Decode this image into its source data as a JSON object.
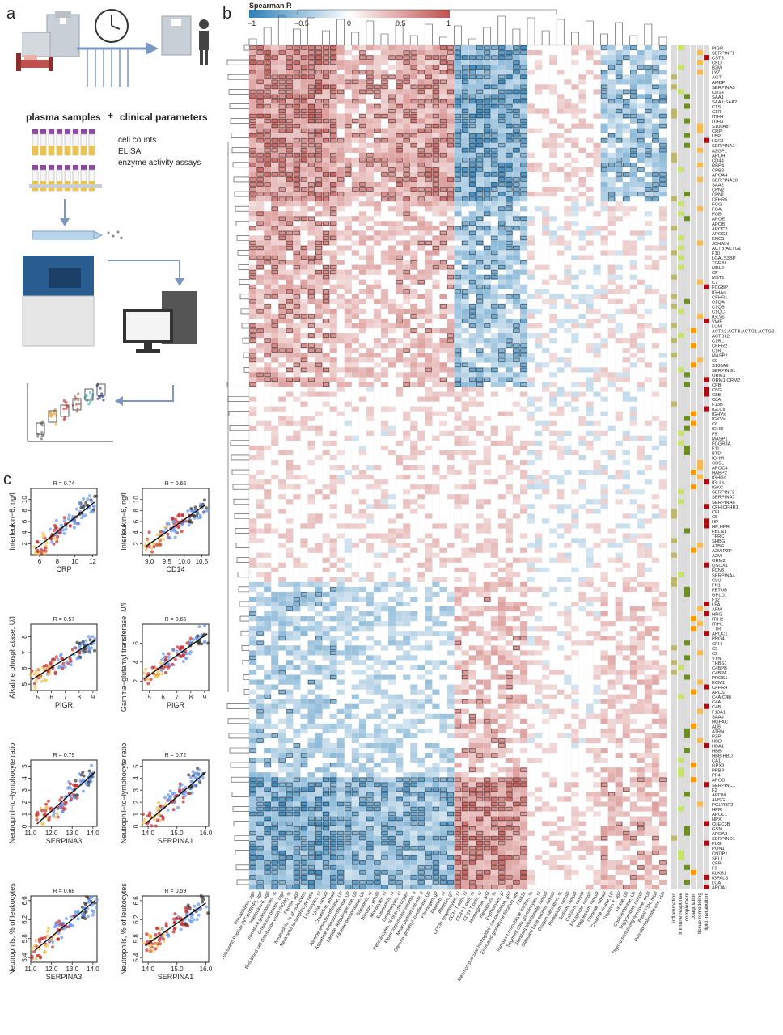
{
  "figure": {
    "panel_a": "a",
    "panel_b": "b",
    "panel_c": "c"
  },
  "workflow": {
    "plasma_label": "plasma samples",
    "plus": "+",
    "clinical_label": "clinical parameters",
    "methods": [
      "cell counts",
      "ELISA",
      "enzyme activity assays"
    ]
  },
  "colorbar": {
    "title": "Spearman R",
    "ticks": [
      "−1",
      "−0.5",
      "0",
      "0.5",
      "1"
    ],
    "low_color": "#2c7fb8",
    "high_color": "#c0504d"
  },
  "heatmap": {
    "proteins": [
      "PIGR",
      "SERPINF1",
      "CST3",
      "CFD",
      "B2M",
      "LYZ",
      "AGT",
      "AMBP",
      "SERPINA3",
      "CD14",
      "SAA1",
      "SAA1;SAA2",
      "C1S",
      "C1R",
      "ITIH4",
      "ITIH3",
      "S100A8",
      "CRP",
      "LBP",
      "LRG1",
      "SERPINA1",
      "AZGP1",
      "APOH",
      "CD44",
      "RBP4",
      "CPB2",
      "APOA4",
      "SERPINA10",
      "SAA2",
      "CPN2",
      "CPN1",
      "CFHR5",
      "FGG",
      "FGA",
      "FGB",
      "APOE",
      "APOB",
      "APOC2",
      "APOC3",
      "KNG1",
      "JCHAIN",
      "ACTB;ACTG1",
      "F10",
      "LGALS3BP",
      "TGFBI",
      "MBL2",
      "CP",
      "MST1",
      "C7",
      "FCGBP",
      "IGHAs",
      "CFHR1",
      "C1QA",
      "C1QB",
      "C1QC",
      "IGLVs",
      "VWF",
      "LUM",
      "ACTA2;ACTB;ACTG1;ACTG2",
      "ACTBL2",
      "C1RL",
      "CFHR2",
      "C1RL",
      "MASP2",
      "C9",
      "S100A9",
      "SERPING1",
      "ORM1",
      "ORM1;ORM2",
      "CFB",
      "C8G",
      "C8B",
      "C8A",
      "F13B",
      "IGLCs",
      "IGHVs",
      "IGKVs",
      "C6",
      "IGHD",
      "F5",
      "MASP1",
      "FCGR3A",
      "F11",
      "BTD",
      "IGHM",
      "CD5L",
      "APOC4",
      "HABP2",
      "IGHGs",
      "IGLLs",
      "IGKC",
      "SERPINF2",
      "SERPINA7",
      "SERPINA6",
      "CFH;CFHR1",
      "CFI",
      "C5",
      "HP",
      "HP;HPR",
      "FBLN1",
      "TFRC",
      "SHBG",
      "A1BG",
      "A2M;PZP",
      "A2M",
      "ORM2",
      "QSOX1",
      "FCN3",
      "SERPINA4",
      "CLU",
      "FN1",
      "FETUB",
      "GPLD1",
      "F12",
      "LPA",
      "AFM",
      "HRG",
      "ITIH2",
      "ITIH1",
      "TTR",
      "APOC1",
      "PRG4",
      "CFH",
      "C3",
      "C2",
      "VTN",
      "THBS1",
      "C4BPB",
      "C4BPA",
      "PROS1",
      "ECM1",
      "CFHR4",
      "APCS",
      "C4A;C4B",
      "C4A",
      "C4B",
      "F13A1",
      "SAA4",
      "HGFAC",
      "ALB",
      "ATRN",
      "PZP",
      "HBD",
      "HBA1",
      "HBB",
      "HBB;HBD",
      "CA1",
      "GPX3",
      "PPBP",
      "PF4",
      "APOD",
      "SERPINC1",
      "F2",
      "APOM",
      "AHSG",
      "PGLYRP2",
      "HPR",
      "APOL1",
      "HPX",
      "CLEC3B",
      "GSN",
      "APOA2",
      "SERPIND1",
      "PLG",
      "PON1",
      "CNDP1",
      "SELL",
      "CFP",
      "F9",
      "KLKB1",
      "IGFALS",
      "LCAT",
      "APOA1"
    ],
    "parameters": [
      "Procalcitonin, ng/l",
      "N-terminal pro b-type Natriuretic Peptide (NT-proBNP), ng/l",
      "Interleukin-6, ng/l",
      "Immature granulocytes, %",
      "C-reactive protein, mg/l",
      "Red blood cell distribution width (RDW), %",
      "Ferritin, µg/l",
      "Neutrophils, % of leukocytes",
      "Neutrophil-to-lymphocyte ratio",
      "Leukocytes, nl",
      "Urea, mmol/l",
      "Creatinine, µmol/l",
      "Alanine aminotransferase, U/l",
      "Aspartate aminotransferase, U/l",
      "Lactate dehydrogenase, U/l",
      "Alkaline phosphatase, U/l",
      "Basophils, nl",
      "Bilirubin, µmol/l",
      "Monocytes, nl",
      "Eosinophils, nl",
      "Lymphocytes, nl",
      "Reticulocytes, % of erythrocytes",
      "Mean corpuscular volume, fl",
      "Mean platelet volume, fl",
      "Gamma-glutamyl transferase, U/l",
      "Fibrinogen, g/l",
      "Platelets, nl",
      "Albumin, g/l",
      "CD19+ lymphocytes, nl",
      "CD3+ T cells, nl",
      "CD4+ T cells, nl",
      "CD8+ T cells, nl",
      "Hemoglobin, g/dl",
      "Hematocrit, %",
      "Erythrocytes, pl",
      "Mean corpuscular hemoglobin concentration, g/dl",
      "Estimated glomerular filtration rate",
      "HbA1c",
      "Immature reticulocyte fraction, %",
      "Segment core granulocytes, nl",
      "Standard bicarbonate, mmol/l",
      "Standard base excess, mmol/l",
      "Oxygen saturation, %",
      "Potassium, mmol/l",
      "Sodium, mmol/l",
      "Calcium, mmol/l",
      "Phosphate, mmol/l",
      "Magnesium, mmol/l",
      "Chloride, mmol/l",
      "Creatine kinase, U/l",
      "Troponin T, ng/l",
      "Lipase, U/l",
      "Cholinesterase, U/l",
      "Triglycerides, mmol/l",
      "Thyroid-stimulating hormone, mU/l",
      "Basal TSH, mU/l",
      "Pseudocholinesterase, kU/l"
    ],
    "annotation_columns": [
      "inflammation",
      "immune response",
      "complement",
      "coagulation",
      "tissue remodeling",
      "lipid metabolism"
    ],
    "annotation_colors": [
      "#bdb76b",
      "#c6e36b",
      "#6b8e23",
      "#ff9900",
      "#ffb84d",
      "#a50f15"
    ]
  },
  "scatter_panels": {
    "colors": [
      "#6495ed",
      "#c62828",
      "#f2c14e",
      "#333333"
    ],
    "plots": [
      {
        "r": "R = 0.74",
        "ylabel": "Interleukin−6, ng/l",
        "xlabel": "CRP",
        "xticks": [
          "6",
          "8",
          "10",
          "12"
        ],
        "yticks": [
          "2",
          "4",
          "6",
          "8",
          "10"
        ],
        "xr": [
          5,
          12.5
        ],
        "yr": [
          0,
          12
        ],
        "line": [
          [
            5.5,
            1
          ],
          [
            12.2,
            9.5
          ]
        ]
      },
      {
        "r": "R = 0.66",
        "ylabel": "Interleukin−6, ng/l",
        "xlabel": "CD14",
        "xticks": [
          "9.0",
          "9.5",
          "10.0",
          "10.5"
        ],
        "yticks": [
          "2",
          "4",
          "6",
          "8",
          "10"
        ],
        "xr": [
          8.8,
          10.7
        ],
        "yr": [
          0,
          12
        ],
        "line": [
          [
            8.9,
            1.5
          ],
          [
            10.6,
            9
          ]
        ]
      },
      {
        "r": "R = 0.57",
        "ylabel": "Alkaline phosphatase, U/l",
        "xlabel": "PIGR",
        "xticks": [
          "5",
          "6",
          "7",
          "8",
          "9"
        ],
        "yticks": [
          "5",
          "6",
          "7",
          "8"
        ],
        "xr": [
          4.5,
          9.3
        ],
        "yr": [
          4.6,
          8.8
        ],
        "line": [
          [
            4.6,
            5.3
          ],
          [
            9.2,
            7.8
          ]
        ]
      },
      {
        "r": "R = 0.65",
        "ylabel": "Gamma−glutamyl transferase, U/l",
        "xlabel": "PIGR",
        "xticks": [
          "5",
          "6",
          "7",
          "8",
          "9"
        ],
        "yticks": [
          "2",
          "4",
          "6"
        ],
        "xr": [
          4.5,
          9.3
        ],
        "yr": [
          1,
          8
        ],
        "line": [
          [
            4.6,
            2.2
          ],
          [
            9.2,
            7
          ]
        ]
      },
      {
        "r": "R = 0.79",
        "ylabel": "Neutrophil−to−lymphocyte ratio",
        "xlabel": "SERPINA3",
        "xticks": [
          "11.0",
          "12.0",
          "13.0",
          "14.0"
        ],
        "yticks": [
          "0",
          "1",
          "2",
          "3",
          "4",
          "5"
        ],
        "xr": [
          11,
          14.2
        ],
        "yr": [
          0,
          5.5
        ],
        "line": [
          [
            11.3,
            0.2
          ],
          [
            14.1,
            4.5
          ]
        ]
      },
      {
        "r": "R = 0.72",
        "ylabel": "Neutrophil−to−lymphocyte ratio",
        "xlabel": "SERPINA1",
        "xticks": [
          "14.0",
          "15.0",
          "16.0"
        ],
        "yticks": [
          "0",
          "1",
          "2",
          "3",
          "4",
          "5"
        ],
        "xr": [
          13.8,
          16.1
        ],
        "yr": [
          0,
          5.5
        ],
        "line": [
          [
            13.9,
            0.2
          ],
          [
            16.0,
            4.5
          ]
        ]
      },
      {
        "r": "R = 0.68",
        "ylabel": "Neutrophils, % of leukocytes",
        "xlabel": "SERPINA3",
        "xticks": [
          "11.0",
          "12.0",
          "13.0",
          "14.0"
        ],
        "yticks": [
          "5.4",
          "5.8",
          "6.2",
          "6.6"
        ],
        "xr": [
          11,
          14.2
        ],
        "yr": [
          5.3,
          6.7
        ],
        "line": [
          [
            11.2,
            5.55
          ],
          [
            14.1,
            6.6
          ]
        ]
      },
      {
        "r": "R = 0.59",
        "ylabel": "Neutrophils, % of leukocytes",
        "xlabel": "SERPINA1",
        "xticks": [
          "14.0",
          "15.0",
          "16.0"
        ],
        "yticks": [
          "5.4",
          "5.8",
          "6.2",
          "6.6"
        ],
        "xr": [
          13.8,
          16.1
        ],
        "yr": [
          5.3,
          6.7
        ],
        "line": [
          [
            13.9,
            5.65
          ],
          [
            16.0,
            6.55
          ]
        ]
      }
    ]
  },
  "chart_data": [
    {
      "type": "heatmap",
      "title": "",
      "colorbar_title": "Spearman R",
      "range": [
        -1,
        1
      ],
      "rows": "heatmap.proteins",
      "columns": "heatmap.parameters",
      "values": "approximate, rendered pattern"
    },
    {
      "type": "scatter",
      "xlabel": "CRP",
      "ylabel": "Interleukin−6, ng/l",
      "annotation": "R = 0.74",
      "xlim": [
        5,
        12.5
      ],
      "ylim": [
        0,
        12
      ]
    },
    {
      "type": "scatter",
      "xlabel": "CD14",
      "ylabel": "Interleukin−6, ng/l",
      "annotation": "R = 0.66",
      "xlim": [
        8.8,
        10.7
      ],
      "ylim": [
        0,
        12
      ]
    },
    {
      "type": "scatter",
      "xlabel": "PIGR",
      "ylabel": "Alkaline phosphatase, U/l",
      "annotation": "R = 0.57",
      "xlim": [
        4.5,
        9.3
      ],
      "ylim": [
        4.6,
        8.8
      ]
    },
    {
      "type": "scatter",
      "xlabel": "PIGR",
      "ylabel": "Gamma−glutamyl transferase, U/l",
      "annotation": "R = 0.65",
      "xlim": [
        4.5,
        9.3
      ],
      "ylim": [
        1,
        8
      ]
    },
    {
      "type": "scatter",
      "xlabel": "SERPINA3",
      "ylabel": "Neutrophil−to−lymphocyte ratio",
      "annotation": "R = 0.79",
      "xlim": [
        11,
        14.2
      ],
      "ylim": [
        0,
        5.5
      ]
    },
    {
      "type": "scatter",
      "xlabel": "SERPINA1",
      "ylabel": "Neutrophil−to−lymphocyte ratio",
      "annotation": "R = 0.72",
      "xlim": [
        13.8,
        16.1
      ],
      "ylim": [
        0,
        5.5
      ]
    },
    {
      "type": "scatter",
      "xlabel": "SERPINA3",
      "ylabel": "Neutrophils, % of leukocytes",
      "annotation": "R = 0.68",
      "xlim": [
        11,
        14.2
      ],
      "ylim": [
        5.3,
        6.7
      ]
    },
    {
      "type": "scatter",
      "xlabel": "SERPINA1",
      "ylabel": "Neutrophils, % of leukocytes",
      "annotation": "R = 0.59",
      "xlim": [
        13.8,
        16.1
      ],
      "ylim": [
        5.3,
        6.7
      ]
    }
  ]
}
